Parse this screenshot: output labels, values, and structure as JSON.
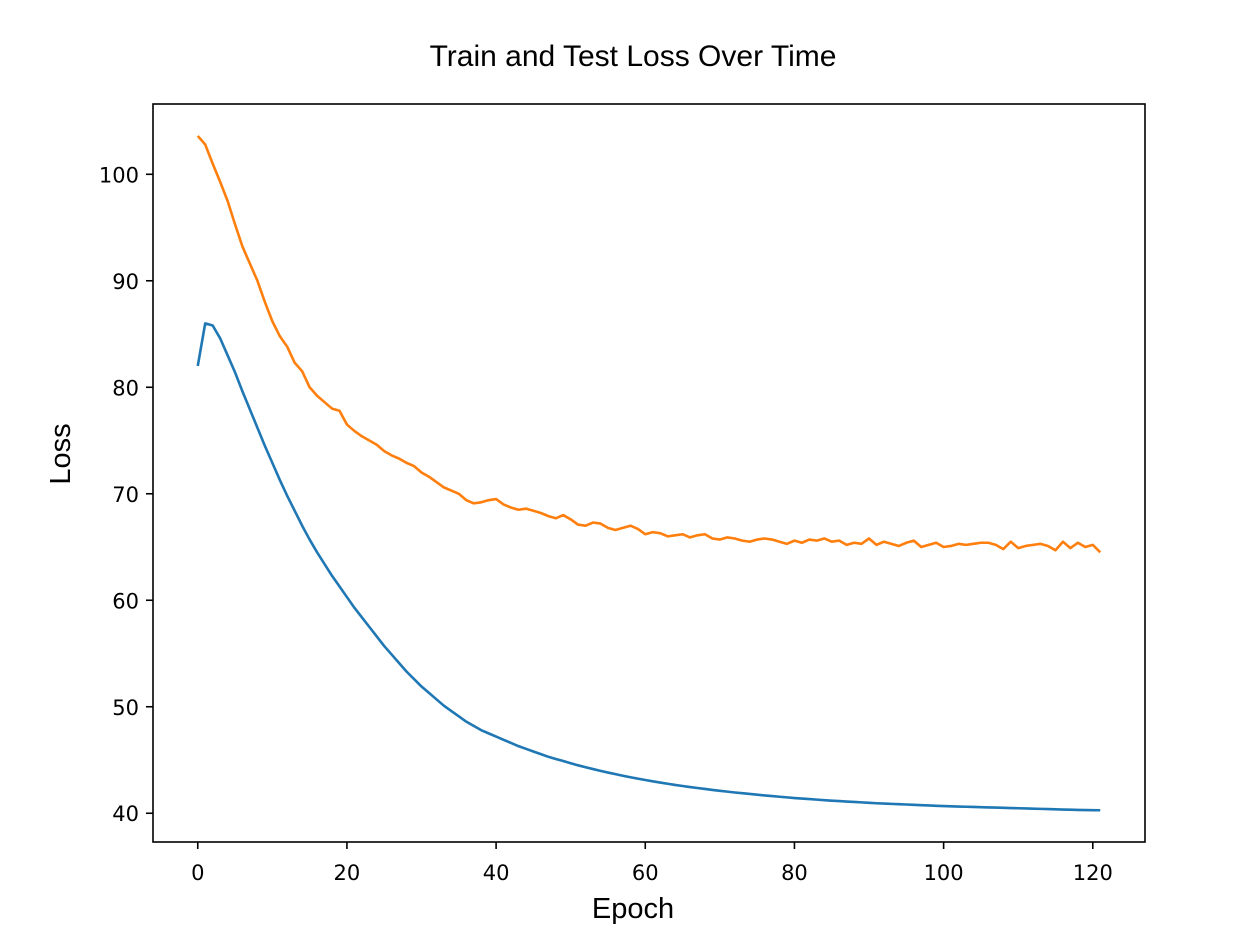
{
  "chart_data": {
    "type": "line",
    "title": "Train and Test Loss Over Time",
    "xlabel": "Epoch",
    "ylabel": "Loss",
    "xlim": [
      -6,
      127
    ],
    "ylim": [
      37.3,
      106.6
    ],
    "xticks": [
      0,
      20,
      40,
      60,
      80,
      100,
      120
    ],
    "yticks": [
      40,
      50,
      60,
      70,
      80,
      90,
      100
    ],
    "grid": false,
    "legend": "none",
    "series": [
      {
        "color": "#1f77b4",
        "x": [
          0,
          1,
          2,
          3,
          4,
          5,
          6,
          7,
          8,
          9,
          10,
          11,
          12,
          13,
          14,
          15,
          16,
          17,
          18,
          19,
          20,
          21,
          22,
          23,
          24,
          25,
          26,
          27,
          28,
          29,
          30,
          31,
          32,
          33,
          34,
          35,
          36,
          37,
          38,
          39,
          40,
          41,
          42,
          43,
          44,
          45,
          46,
          47,
          48,
          49,
          50,
          51,
          52,
          53,
          54,
          55,
          56,
          57,
          58,
          59,
          60,
          61,
          62,
          63,
          64,
          65,
          66,
          67,
          68,
          69,
          70,
          71,
          72,
          73,
          74,
          75,
          76,
          77,
          78,
          79,
          80,
          81,
          82,
          83,
          84,
          85,
          86,
          87,
          88,
          89,
          90,
          91,
          92,
          93,
          94,
          95,
          96,
          97,
          98,
          99,
          100,
          101,
          102,
          103,
          104,
          105,
          106,
          107,
          108,
          109,
          110,
          111,
          112,
          113,
          114,
          115,
          116,
          117,
          118,
          119,
          120,
          121
        ],
        "values": [
          82.0,
          86.0,
          85.8,
          84.6,
          83.0,
          81.4,
          79.6,
          77.9,
          76.2,
          74.5,
          72.9,
          71.3,
          69.8,
          68.4,
          67.0,
          65.7,
          64.5,
          63.4,
          62.3,
          61.3,
          60.3,
          59.3,
          58.4,
          57.5,
          56.6,
          55.7,
          54.9,
          54.1,
          53.3,
          52.6,
          51.9,
          51.3,
          50.7,
          50.1,
          49.6,
          49.1,
          48.6,
          48.2,
          47.8,
          47.5,
          47.2,
          46.9,
          46.6,
          46.3,
          46.05,
          45.8,
          45.55,
          45.3,
          45.1,
          44.9,
          44.7,
          44.5,
          44.32,
          44.15,
          43.98,
          43.82,
          43.67,
          43.52,
          43.38,
          43.25,
          43.12,
          43.0,
          42.88,
          42.77,
          42.66,
          42.56,
          42.46,
          42.37,
          42.28,
          42.19,
          42.11,
          42.03,
          41.95,
          41.88,
          41.81,
          41.74,
          41.67,
          41.61,
          41.55,
          41.49,
          41.43,
          41.38,
          41.33,
          41.28,
          41.23,
          41.18,
          41.14,
          41.1,
          41.06,
          41.02,
          40.98,
          40.94,
          40.91,
          40.88,
          40.85,
          40.82,
          40.79,
          40.76,
          40.73,
          40.7,
          40.67,
          40.65,
          40.63,
          40.61,
          40.59,
          40.57,
          40.55,
          40.53,
          40.51,
          40.49,
          40.47,
          40.45,
          40.43,
          40.41,
          40.39,
          40.37,
          40.35,
          40.33,
          40.31,
          40.3,
          40.29,
          40.28
        ]
      },
      {
        "color": "#ff7f0e",
        "x": [
          0,
          1,
          2,
          3,
          4,
          5,
          6,
          7,
          8,
          9,
          10,
          11,
          12,
          13,
          14,
          15,
          16,
          17,
          18,
          19,
          20,
          21,
          22,
          23,
          24,
          25,
          26,
          27,
          28,
          29,
          30,
          31,
          32,
          33,
          34,
          35,
          36,
          37,
          38,
          39,
          40,
          41,
          42,
          43,
          44,
          45,
          46,
          47,
          48,
          49,
          50,
          51,
          52,
          53,
          54,
          55,
          56,
          57,
          58,
          59,
          60,
          61,
          62,
          63,
          64,
          65,
          66,
          67,
          68,
          69,
          70,
          71,
          72,
          73,
          74,
          75,
          76,
          77,
          78,
          79,
          80,
          81,
          82,
          83,
          84,
          85,
          86,
          87,
          88,
          89,
          90,
          91,
          92,
          93,
          94,
          95,
          96,
          97,
          98,
          99,
          100,
          101,
          102,
          103,
          104,
          105,
          106,
          107,
          108,
          109,
          110,
          111,
          112,
          113,
          114,
          115,
          116,
          117,
          118,
          119,
          120,
          121
        ],
        "values": [
          103.6,
          102.8,
          101.0,
          99.3,
          97.5,
          95.3,
          93.2,
          91.6,
          90.0,
          88.0,
          86.2,
          84.8,
          83.8,
          82.3,
          81.5,
          80.0,
          79.2,
          78.6,
          78.0,
          77.8,
          76.5,
          75.9,
          75.4,
          75.0,
          74.6,
          74.0,
          73.6,
          73.3,
          72.9,
          72.6,
          72.0,
          71.6,
          71.1,
          70.6,
          70.3,
          70.0,
          69.4,
          69.1,
          69.2,
          69.4,
          69.5,
          69.0,
          68.7,
          68.5,
          68.6,
          68.4,
          68.2,
          67.9,
          67.7,
          68.0,
          67.6,
          67.1,
          67.0,
          67.3,
          67.2,
          66.8,
          66.6,
          66.8,
          67.0,
          66.7,
          66.2,
          66.4,
          66.3,
          66.0,
          66.1,
          66.2,
          65.9,
          66.1,
          66.2,
          65.8,
          65.7,
          65.9,
          65.8,
          65.6,
          65.5,
          65.7,
          65.8,
          65.7,
          65.5,
          65.3,
          65.6,
          65.4,
          65.7,
          65.6,
          65.8,
          65.5,
          65.6,
          65.2,
          65.4,
          65.3,
          65.8,
          65.2,
          65.5,
          65.3,
          65.1,
          65.4,
          65.6,
          65.0,
          65.2,
          65.4,
          65.0,
          65.1,
          65.3,
          65.2,
          65.3,
          65.4,
          65.4,
          65.2,
          64.8,
          65.5,
          64.9,
          65.1,
          65.2,
          65.3,
          65.1,
          64.7,
          65.5,
          64.9,
          65.4,
          65.0,
          65.2,
          64.5
        ]
      }
    ]
  }
}
